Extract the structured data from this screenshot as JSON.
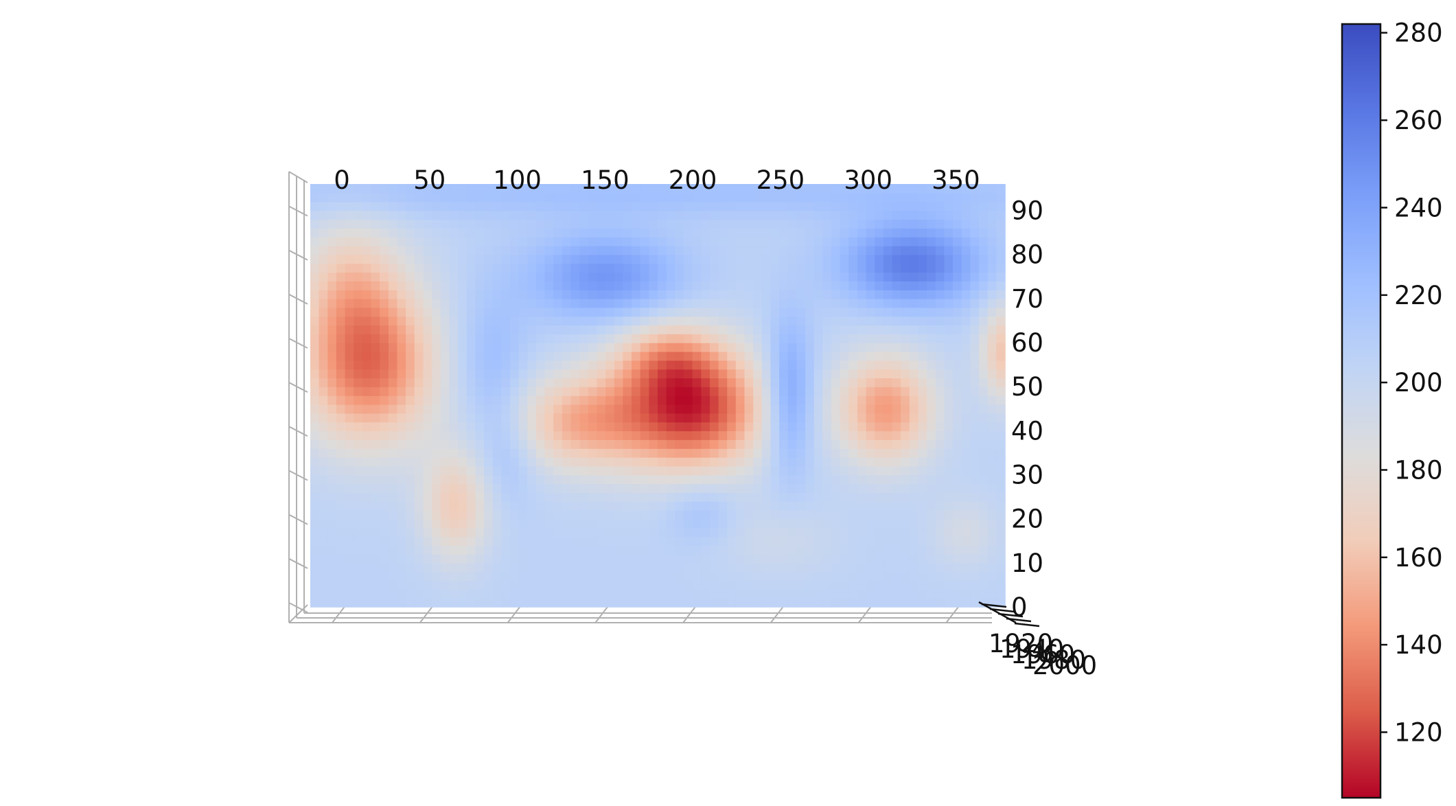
{
  "chart_data": {
    "type": "heatmap",
    "title": "",
    "xlabel": "",
    "ylabel": "",
    "x_ticks": [
      "0",
      "50",
      "100",
      "150",
      "200",
      "250",
      "300",
      "350"
    ],
    "y_ticks": [
      "0",
      "10",
      "20",
      "30",
      "40",
      "50",
      "60",
      "70",
      "80",
      "90"
    ],
    "x_range": [
      -18,
      378
    ],
    "y_range": [
      0,
      96
    ],
    "depth_tick_labels": [
      "1920",
      "1940",
      "1960",
      "1980",
      "2000"
    ],
    "colormap": "coolwarm_r",
    "colormap_stops": [
      "#b40426",
      "#dc5d4a",
      "#f49a7b",
      "#f1cdba",
      "#dddcdc",
      "#c0d4f5",
      "#9ebeff",
      "#7b9ff9",
      "#5977e3",
      "#3b4cc0"
    ],
    "vmin": 105,
    "vmax": 282,
    "colorbar_ticks": [
      "120",
      "140",
      "160",
      "180",
      "200",
      "220",
      "240",
      "260",
      "280"
    ],
    "surface_model": {
      "base": 205,
      "blobs": [
        {
          "x": 15,
          "y": 55,
          "sx": 28,
          "sy": 13,
          "amp": -75
        },
        {
          "x": 5,
          "y": 75,
          "sx": 22,
          "sy": 10,
          "amp": -30
        },
        {
          "x": 200,
          "y": 45,
          "sx": 30,
          "sy": 10,
          "amp": -90
        },
        {
          "x": 135,
          "y": 42,
          "sx": 28,
          "sy": 8,
          "amp": -50
        },
        {
          "x": 185,
          "y": 57,
          "sx": 22,
          "sy": 6,
          "amp": -35
        },
        {
          "x": 310,
          "y": 45,
          "sx": 20,
          "sy": 9,
          "amp": -60
        },
        {
          "x": 378,
          "y": 58,
          "sx": 10,
          "sy": 8,
          "amp": -45
        },
        {
          "x": 65,
          "y": 23,
          "sx": 14,
          "sy": 9,
          "amp": -40
        },
        {
          "x": 355,
          "y": 17,
          "sx": 14,
          "sy": 6,
          "amp": -15
        },
        {
          "x": 250,
          "y": 15,
          "sx": 25,
          "sy": 6,
          "amp": -10
        },
        {
          "x": 150,
          "y": 75,
          "sx": 30,
          "sy": 7,
          "amp": 42
        },
        {
          "x": 325,
          "y": 78,
          "sx": 28,
          "sy": 7,
          "amp": 55
        },
        {
          "x": 255,
          "y": 48,
          "sx": 10,
          "sy": 12,
          "amp": 42
        },
        {
          "x": 85,
          "y": 55,
          "sx": 15,
          "sy": 12,
          "amp": 20
        },
        {
          "x": 95,
          "y": 35,
          "sx": 12,
          "sy": 8,
          "amp": 15
        },
        {
          "x": 205,
          "y": 22,
          "sx": 14,
          "sy": 5,
          "amp": 15
        },
        {
          "x": 180,
          "y": 94,
          "sx": 250,
          "sy": 4,
          "amp": 15
        }
      ]
    }
  }
}
